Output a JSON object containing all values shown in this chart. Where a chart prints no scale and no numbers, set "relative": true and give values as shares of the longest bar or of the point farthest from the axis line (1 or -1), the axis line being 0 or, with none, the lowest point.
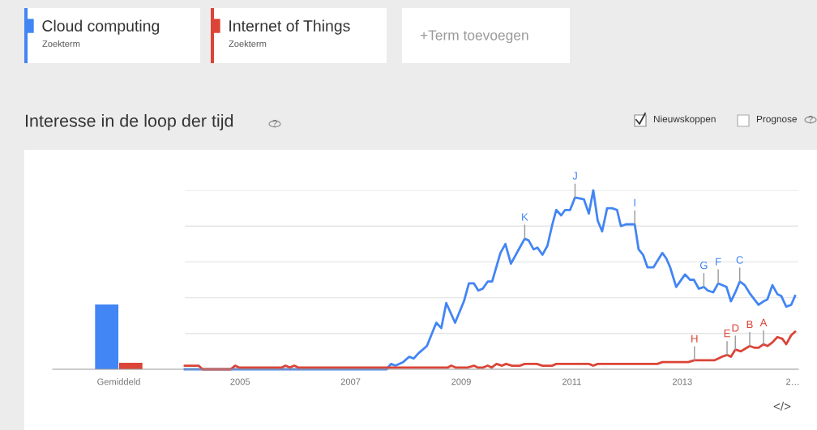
{
  "chart_data": [
    {
      "type": "bar",
      "categories": [
        "Gemiddeld"
      ],
      "relative": true,
      "grid": false,
      "series": [
        {
          "color": "#4285f4",
          "values": [
            1
          ]
        },
        {
          "color": "#db4437",
          "values": [
            0.1
          ]
        }
      ]
    },
    {
      "type": "line",
      "title": "Interesse in de loop der tijd",
      "relative": true,
      "xlim": [
        2004,
        2015.1
      ],
      "xticks": [
        2005,
        2007,
        2009,
        2011,
        2013,
        {
          "value": 2015,
          "label": "2…"
        }
      ],
      "grid": "y",
      "legend": "top left",
      "tick_labels": "x",
      "series": [
        {
          "name": "Cloud computing",
          "color": "#4285f4",
          "x": [
            2004.0,
            2007.65,
            2007.73,
            2007.81,
            2007.95,
            2008.06,
            2008.14,
            2008.23,
            2008.38,
            2008.55,
            2008.64,
            2008.73,
            2008.89,
            2009.05,
            2009.14,
            2009.23,
            2009.31,
            2009.39,
            2009.48,
            2009.56,
            2009.71,
            2009.8,
            2009.9,
            2010.06,
            2010.15,
            2010.22,
            2010.31,
            2010.38,
            2010.47,
            2010.56,
            2010.65,
            2010.72,
            2010.81,
            2010.88,
            2010.97,
            2011.06,
            2011.22,
            2011.31,
            2011.39,
            2011.47,
            2011.55,
            2011.64,
            2011.73,
            2011.82,
            2011.89,
            2011.98,
            2012.14,
            2012.21,
            2012.29,
            2012.37,
            2012.48,
            2012.64,
            2012.71,
            2012.78,
            2012.89,
            2013.05,
            2013.14,
            2013.21,
            2013.3,
            2013.39,
            2013.46,
            2013.56,
            2013.65,
            2013.8,
            2013.88,
            2013.96,
            2014.04,
            2014.13,
            2014.23,
            2014.38,
            2014.47,
            2014.54,
            2014.63,
            2014.72,
            2014.79,
            2014.88,
            2014.97,
            2015.04
          ],
          "values": [
            0,
            0,
            0.03,
            0.02,
            0.04,
            0.07,
            0.06,
            0.09,
            0.13,
            0.26,
            0.23,
            0.37,
            0.26,
            0.38,
            0.48,
            0.48,
            0.44,
            0.45,
            0.49,
            0.49,
            0.65,
            0.7,
            0.59,
            0.68,
            0.73,
            0.72,
            0.67,
            0.68,
            0.64,
            0.69,
            0.81,
            0.89,
            0.86,
            0.89,
            0.89,
            0.96,
            0.95,
            0.87,
            1.0,
            0.83,
            0.77,
            0.9,
            0.9,
            0.89,
            0.8,
            0.81,
            0.81,
            0.67,
            0.64,
            0.57,
            0.57,
            0.65,
            0.62,
            0.57,
            0.46,
            0.53,
            0.5,
            0.5,
            0.45,
            0.46,
            0.44,
            0.43,
            0.48,
            0.46,
            0.38,
            0.43,
            0.49,
            0.47,
            0.42,
            0.36,
            0.38,
            0.39,
            0.47,
            0.42,
            0.41,
            0.35,
            0.36,
            0.41
          ]
        },
        {
          "name": "Internet of Things",
          "color": "#db4437",
          "x": [
            2004.0,
            2004.25,
            2004.32,
            2004.83,
            2004.91,
            2004.98,
            2005.76,
            2005.82,
            2005.9,
            2005.98,
            2006.05,
            2008.76,
            2008.82,
            2008.9,
            2009.12,
            2009.23,
            2009.3,
            2009.4,
            2009.48,
            2009.55,
            2009.64,
            2009.74,
            2009.81,
            2009.92,
            2010.06,
            2010.15,
            2010.37,
            2010.47,
            2010.65,
            2010.72,
            2011.31,
            2011.39,
            2011.47,
            2012.55,
            2012.64,
            2013.11,
            2013.22,
            2013.58,
            2013.72,
            2013.81,
            2013.88,
            2013.96,
            2014.06,
            2014.22,
            2014.31,
            2014.38,
            2014.47,
            2014.54,
            2014.63,
            2014.72,
            2014.81,
            2014.88,
            2014.97,
            2015.04
          ],
          "values": [
            0.02,
            0.02,
            0,
            0,
            0.02,
            0.01,
            0.01,
            0.02,
            0.01,
            0.02,
            0.01,
            0.01,
            0.02,
            0.01,
            0.01,
            0.02,
            0.01,
            0.01,
            0.02,
            0.01,
            0.03,
            0.02,
            0.03,
            0.02,
            0.02,
            0.03,
            0.03,
            0.02,
            0.02,
            0.03,
            0.03,
            0.02,
            0.03,
            0.03,
            0.04,
            0.04,
            0.05,
            0.05,
            0.07,
            0.08,
            0.07,
            0.11,
            0.1,
            0.13,
            0.12,
            0.12,
            0.14,
            0.13,
            0.15,
            0.18,
            0.17,
            0.14,
            0.19,
            0.21
          ]
        }
      ],
      "annotations": [
        "Zoekterm",
        "Zoekterm",
        "+Term toevoegen",
        "Nieuwskoppen",
        "Prognose",
        "?",
        "?",
        "</>",
        {
          "text": "K",
          "x": 2010.15,
          "y": 0.73
        },
        {
          "text": "J",
          "x": 2011.06,
          "y": 0.96
        },
        {
          "text": "I",
          "x": 2012.14,
          "y": 0.81
        },
        {
          "text": "G",
          "x": 2013.39,
          "y": 0.46
        },
        {
          "text": "F",
          "x": 2013.65,
          "y": 0.48
        },
        {
          "text": "C",
          "x": 2014.04,
          "y": 0.49
        },
        {
          "text": "H",
          "x": 2013.22,
          "y": 0.05
        },
        {
          "text": "E",
          "x": 2013.81,
          "y": 0.08
        },
        {
          "text": "D",
          "x": 2013.96,
          "y": 0.11
        },
        {
          "text": "B",
          "x": 2014.22,
          "y": 0.13
        },
        {
          "text": "A",
          "x": 2014.47,
          "y": 0.14
        }
      ]
    }
  ]
}
